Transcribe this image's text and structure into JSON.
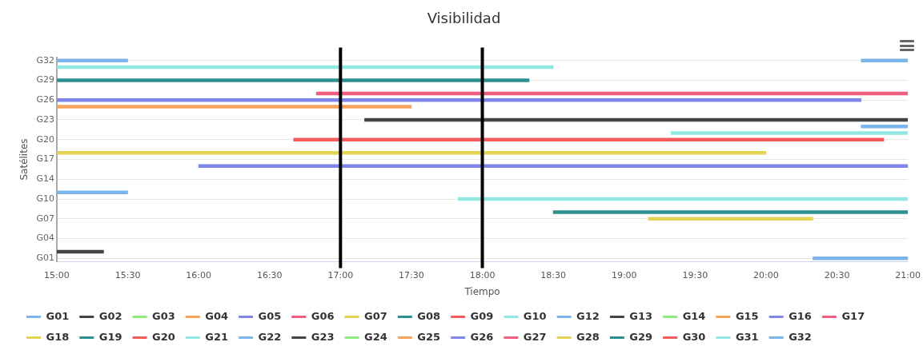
{
  "chart_data": {
    "type": "bar",
    "orientation": "horizontal",
    "title": "Visibilidad",
    "xlabel": "Tiempo",
    "ylabel": "Satélites",
    "categories": [
      "G32",
      null,
      null,
      "G29",
      null,
      null,
      "G26",
      null,
      null,
      "G23",
      null,
      null,
      "G20",
      null,
      null,
      "G17",
      null,
      null,
      "G14",
      null,
      null,
      "G10",
      null,
      null,
      "G07",
      null,
      null,
      "G04",
      null,
      null,
      "G01"
    ],
    "xlim": [
      15,
      21
    ],
    "xticks": [
      {
        "value": 15,
        "label": "15:00"
      },
      {
        "value": 15.5,
        "label": "15:30"
      },
      {
        "value": 16,
        "label": "16:00"
      },
      {
        "value": 16.5,
        "label": "16:30"
      },
      {
        "value": 17,
        "label": "17:00"
      },
      {
        "value": 17.5,
        "label": "17:30"
      },
      {
        "value": 18,
        "label": "18:00"
      },
      {
        "value": 18.5,
        "label": "18:30"
      },
      {
        "value": 19,
        "label": "19:00"
      },
      {
        "value": 19.5,
        "label": "19:30"
      },
      {
        "value": 20,
        "label": "20:00"
      },
      {
        "value": 20.5,
        "label": "20:30"
      },
      {
        "value": 21,
        "label": "21:00"
      }
    ],
    "grid": "y",
    "legend": "bottom",
    "ref_lines": [
      {
        "axis": "x",
        "value": 17,
        "color": "#000000"
      },
      {
        "axis": "x",
        "value": 18,
        "color": "#000000"
      }
    ],
    "series": [
      {
        "name": "G01",
        "color": "#7cb5ec",
        "base": [
          null,
          null,
          null,
          null,
          null,
          null,
          null,
          null,
          null,
          null,
          null,
          null,
          null,
          null,
          null,
          null,
          null,
          null,
          null,
          null,
          null,
          null,
          null,
          null,
          null,
          null,
          null,
          null,
          null,
          null,
          20.33
        ],
        "values": [
          null,
          null,
          null,
          null,
          null,
          null,
          null,
          null,
          null,
          null,
          null,
          null,
          null,
          null,
          null,
          null,
          null,
          null,
          null,
          null,
          null,
          null,
          null,
          null,
          null,
          null,
          null,
          null,
          null,
          null,
          0.67
        ]
      },
      {
        "name": "G02",
        "color": "#434348",
        "base": [
          null,
          null,
          null,
          null,
          null,
          null,
          null,
          null,
          null,
          null,
          null,
          null,
          null,
          null,
          null,
          null,
          null,
          null,
          null,
          null,
          null,
          null,
          null,
          null,
          null,
          null,
          null,
          null,
          null,
          15,
          null
        ],
        "values": [
          null,
          null,
          null,
          null,
          null,
          null,
          null,
          null,
          null,
          null,
          null,
          null,
          null,
          null,
          null,
          null,
          null,
          null,
          null,
          null,
          null,
          null,
          null,
          null,
          null,
          null,
          null,
          null,
          null,
          0.33,
          null
        ]
      },
      {
        "name": "G03",
        "color": "#90ed7d",
        "values": [
          null,
          null,
          null,
          null,
          null,
          null,
          null,
          null,
          null,
          null,
          null,
          null,
          null,
          null,
          null,
          null,
          null,
          null,
          null,
          null,
          null,
          null,
          null,
          null,
          null,
          null,
          null,
          null,
          null,
          null,
          null
        ]
      },
      {
        "name": "G04",
        "color": "#f7a35c",
        "values": [
          null,
          null,
          null,
          null,
          null,
          null,
          null,
          null,
          null,
          null,
          null,
          null,
          null,
          null,
          null,
          null,
          null,
          null,
          null,
          null,
          null,
          null,
          null,
          null,
          null,
          null,
          null,
          null,
          null,
          null,
          null
        ]
      },
      {
        "name": "G05",
        "color": "#8085e9",
        "values": [
          null,
          null,
          null,
          null,
          null,
          null,
          null,
          null,
          null,
          null,
          null,
          null,
          null,
          null,
          null,
          null,
          null,
          null,
          null,
          null,
          null,
          null,
          null,
          null,
          null,
          null,
          null,
          null,
          null,
          null,
          null
        ]
      },
      {
        "name": "G06",
        "color": "#f15c80",
        "values": [
          null,
          null,
          null,
          null,
          null,
          null,
          null,
          null,
          null,
          null,
          null,
          null,
          null,
          null,
          null,
          null,
          null,
          null,
          null,
          null,
          null,
          null,
          null,
          null,
          null,
          null,
          null,
          null,
          null,
          null,
          null
        ]
      },
      {
        "name": "G07",
        "color": "#e4d354",
        "base": [
          null,
          null,
          null,
          null,
          null,
          null,
          null,
          null,
          null,
          null,
          null,
          null,
          null,
          null,
          null,
          null,
          null,
          null,
          null,
          null,
          null,
          null,
          null,
          null,
          19.17,
          null,
          null,
          null,
          null,
          null,
          null
        ],
        "values": [
          null,
          null,
          null,
          null,
          null,
          null,
          null,
          null,
          null,
          null,
          null,
          null,
          null,
          null,
          null,
          null,
          null,
          null,
          null,
          null,
          null,
          null,
          null,
          null,
          1.16,
          null,
          null,
          null,
          null,
          null,
          null
        ]
      },
      {
        "name": "G08",
        "color": "#2b908f",
        "base": [
          null,
          null,
          null,
          null,
          null,
          null,
          null,
          null,
          null,
          null,
          null,
          null,
          null,
          null,
          null,
          null,
          null,
          null,
          null,
          null,
          null,
          null,
          null,
          18.5,
          null,
          null,
          null,
          null,
          null,
          null,
          null
        ],
        "values": [
          null,
          null,
          null,
          null,
          null,
          null,
          null,
          null,
          null,
          null,
          null,
          null,
          null,
          null,
          null,
          null,
          null,
          null,
          null,
          null,
          null,
          null,
          null,
          2.5,
          null,
          null,
          null,
          null,
          null,
          null,
          null
        ]
      },
      {
        "name": "G09",
        "color": "#f45b5b",
        "values": [
          null,
          null,
          null,
          null,
          null,
          null,
          null,
          null,
          null,
          null,
          null,
          null,
          null,
          null,
          null,
          null,
          null,
          null,
          null,
          null,
          null,
          null,
          null,
          null,
          null,
          null,
          null,
          null,
          null,
          null,
          null
        ]
      },
      {
        "name": "G10",
        "color": "#91e8e1",
        "base": [
          null,
          null,
          null,
          null,
          null,
          null,
          null,
          null,
          null,
          null,
          null,
          null,
          null,
          null,
          null,
          null,
          null,
          null,
          null,
          null,
          null,
          17.83,
          null,
          null,
          null,
          null,
          null,
          null,
          null,
          null,
          null
        ],
        "values": [
          null,
          null,
          null,
          null,
          null,
          null,
          null,
          null,
          null,
          null,
          null,
          null,
          null,
          null,
          null,
          null,
          null,
          null,
          null,
          null,
          null,
          3.17,
          null,
          null,
          null,
          null,
          null,
          null,
          null,
          null,
          null
        ]
      },
      {
        "name": "G12",
        "color": "#7cb5ec",
        "base": [
          null,
          null,
          null,
          null,
          null,
          null,
          null,
          null,
          null,
          null,
          null,
          null,
          null,
          null,
          null,
          null,
          null,
          null,
          null,
          null,
          15,
          null,
          null,
          null,
          null,
          null,
          null,
          null,
          null,
          null,
          null
        ],
        "values": [
          null,
          null,
          null,
          null,
          null,
          null,
          null,
          null,
          null,
          null,
          null,
          null,
          null,
          null,
          null,
          null,
          null,
          null,
          null,
          null,
          0.5,
          null,
          null,
          null,
          null,
          null,
          null,
          null,
          null,
          null,
          null
        ]
      },
      {
        "name": "G13",
        "color": "#434348",
        "values": [
          null,
          null,
          null,
          null,
          null,
          null,
          null,
          null,
          null,
          null,
          null,
          null,
          null,
          null,
          null,
          null,
          null,
          null,
          null,
          null,
          null,
          null,
          null,
          null,
          null,
          null,
          null,
          null,
          null,
          null,
          null
        ]
      },
      {
        "name": "G14",
        "color": "#90ed7d",
        "values": [
          null,
          null,
          null,
          null,
          null,
          null,
          null,
          null,
          null,
          null,
          null,
          null,
          null,
          null,
          null,
          null,
          null,
          null,
          null,
          null,
          null,
          null,
          null,
          null,
          null,
          null,
          null,
          null,
          null,
          null,
          null
        ]
      },
      {
        "name": "G15",
        "color": "#f7a35c",
        "values": [
          null,
          null,
          null,
          null,
          null,
          null,
          null,
          null,
          null,
          null,
          null,
          null,
          null,
          null,
          null,
          null,
          null,
          null,
          null,
          null,
          null,
          null,
          null,
          null,
          null,
          null,
          null,
          null,
          null,
          null,
          null
        ]
      },
      {
        "name": "G16",
        "color": "#8085e9",
        "base": [
          null,
          null,
          null,
          null,
          null,
          null,
          null,
          null,
          null,
          null,
          null,
          null,
          null,
          null,
          null,
          null,
          16,
          null,
          null,
          null,
          null,
          null,
          null,
          null,
          null,
          null,
          null,
          null,
          null,
          null,
          null
        ],
        "values": [
          null,
          null,
          null,
          null,
          null,
          null,
          null,
          null,
          null,
          null,
          null,
          null,
          null,
          null,
          null,
          null,
          5,
          null,
          null,
          null,
          null,
          null,
          null,
          null,
          null,
          null,
          null,
          null,
          null,
          null,
          null
        ]
      },
      {
        "name": "G17",
        "color": "#f15c80",
        "values": [
          null,
          null,
          null,
          null,
          null,
          null,
          null,
          null,
          null,
          null,
          null,
          null,
          null,
          null,
          null,
          null,
          null,
          null,
          null,
          null,
          null,
          null,
          null,
          null,
          null,
          null,
          null,
          null,
          null,
          null,
          null
        ]
      },
      {
        "name": "G18",
        "color": "#e4d354",
        "base": [
          null,
          null,
          null,
          null,
          null,
          null,
          null,
          null,
          null,
          null,
          null,
          null,
          null,
          null,
          15,
          null,
          null,
          null,
          null,
          null,
          null,
          null,
          null,
          null,
          null,
          null,
          null,
          null,
          null,
          null,
          null
        ],
        "values": [
          null,
          null,
          null,
          null,
          null,
          null,
          null,
          null,
          null,
          null,
          null,
          null,
          null,
          null,
          5,
          null,
          null,
          null,
          null,
          null,
          null,
          null,
          null,
          null,
          null,
          null,
          null,
          null,
          null,
          null,
          null
        ]
      },
      {
        "name": "G19",
        "color": "#2b908f",
        "values": [
          null,
          null,
          null,
          null,
          null,
          null,
          null,
          null,
          null,
          null,
          null,
          null,
          null,
          null,
          null,
          null,
          null,
          null,
          null,
          null,
          null,
          null,
          null,
          null,
          null,
          null,
          null,
          null,
          null,
          null,
          null
        ]
      },
      {
        "name": "G20",
        "color": "#f45b5b",
        "base": [
          null,
          null,
          null,
          null,
          null,
          null,
          null,
          null,
          null,
          null,
          null,
          null,
          16.67,
          null,
          null,
          null,
          null,
          null,
          null,
          null,
          null,
          null,
          null,
          null,
          null,
          null,
          null,
          null,
          null,
          null,
          null
        ],
        "values": [
          null,
          null,
          null,
          null,
          null,
          null,
          null,
          null,
          null,
          null,
          null,
          null,
          4.16,
          null,
          null,
          null,
          null,
          null,
          null,
          null,
          null,
          null,
          null,
          null,
          null,
          null,
          null,
          null,
          null,
          null,
          null
        ]
      },
      {
        "name": "G21",
        "color": "#91e8e1",
        "base": [
          null,
          null,
          null,
          null,
          null,
          null,
          null,
          null,
          null,
          null,
          null,
          19.33,
          null,
          null,
          null,
          null,
          null,
          null,
          null,
          null,
          null,
          null,
          null,
          null,
          null,
          null,
          null,
          null,
          null,
          null,
          null
        ],
        "values": [
          null,
          null,
          null,
          null,
          null,
          null,
          null,
          null,
          null,
          null,
          null,
          1.67,
          null,
          null,
          null,
          null,
          null,
          null,
          null,
          null,
          null,
          null,
          null,
          null,
          null,
          null,
          null,
          null,
          null,
          null,
          null
        ]
      },
      {
        "name": "G22",
        "color": "#7cb5ec",
        "base": [
          null,
          null,
          null,
          null,
          null,
          null,
          null,
          null,
          null,
          null,
          20.67,
          null,
          null,
          null,
          null,
          null,
          null,
          null,
          null,
          null,
          null,
          null,
          null,
          null,
          null,
          null,
          null,
          null,
          null,
          null,
          null
        ],
        "values": [
          null,
          null,
          null,
          null,
          null,
          null,
          null,
          null,
          null,
          null,
          0.33,
          null,
          null,
          null,
          null,
          null,
          null,
          null,
          null,
          null,
          null,
          null,
          null,
          null,
          null,
          null,
          null,
          null,
          null,
          null,
          null
        ]
      },
      {
        "name": "G23",
        "color": "#434348",
        "base": [
          null,
          null,
          null,
          null,
          null,
          null,
          null,
          null,
          null,
          17.17,
          null,
          null,
          null,
          null,
          null,
          null,
          null,
          null,
          null,
          null,
          null,
          null,
          null,
          null,
          null,
          null,
          null,
          null,
          null,
          null,
          null
        ],
        "values": [
          null,
          null,
          null,
          null,
          null,
          null,
          null,
          null,
          null,
          3.83,
          null,
          null,
          null,
          null,
          null,
          null,
          null,
          null,
          null,
          null,
          null,
          null,
          null,
          null,
          null,
          null,
          null,
          null,
          null,
          null,
          null
        ]
      },
      {
        "name": "G24",
        "color": "#90ed7d",
        "values": [
          null,
          null,
          null,
          null,
          null,
          null,
          null,
          null,
          null,
          null,
          null,
          null,
          null,
          null,
          null,
          null,
          null,
          null,
          null,
          null,
          null,
          null,
          null,
          null,
          null,
          null,
          null,
          null,
          null,
          null,
          null
        ]
      },
      {
        "name": "G25",
        "color": "#f7a35c",
        "base": [
          null,
          null,
          null,
          null,
          null,
          null,
          null,
          15,
          null,
          null,
          null,
          null,
          null,
          null,
          null,
          null,
          null,
          null,
          null,
          null,
          null,
          null,
          null,
          null,
          null,
          null,
          null,
          null,
          null,
          null,
          null
        ],
        "values": [
          null,
          null,
          null,
          null,
          null,
          null,
          null,
          2.5,
          null,
          null,
          null,
          null,
          null,
          null,
          null,
          null,
          null,
          null,
          null,
          null,
          null,
          null,
          null,
          null,
          null,
          null,
          null,
          null,
          null,
          null,
          null
        ]
      },
      {
        "name": "G26",
        "color": "#8085e9",
        "base": [
          null,
          null,
          null,
          null,
          null,
          null,
          15,
          null,
          null,
          null,
          null,
          null,
          null,
          null,
          null,
          null,
          null,
          null,
          null,
          null,
          null,
          null,
          null,
          null,
          null,
          null,
          null,
          null,
          null,
          null,
          null
        ],
        "values": [
          null,
          null,
          null,
          null,
          null,
          null,
          5.67,
          null,
          null,
          null,
          null,
          null,
          null,
          null,
          null,
          null,
          null,
          null,
          null,
          null,
          null,
          null,
          null,
          null,
          null,
          null,
          null,
          null,
          null,
          null,
          null
        ]
      },
      {
        "name": "G27",
        "color": "#f15c80",
        "base": [
          null,
          null,
          null,
          null,
          null,
          16.83,
          null,
          null,
          null,
          null,
          null,
          null,
          null,
          null,
          null,
          null,
          null,
          null,
          null,
          null,
          null,
          null,
          null,
          null,
          null,
          null,
          null,
          null,
          null,
          null,
          null
        ],
        "values": [
          null,
          null,
          null,
          null,
          null,
          4.17,
          null,
          null,
          null,
          null,
          null,
          null,
          null,
          null,
          null,
          null,
          null,
          null,
          null,
          null,
          null,
          null,
          null,
          null,
          null,
          null,
          null,
          null,
          null,
          null,
          null
        ]
      },
      {
        "name": "G28",
        "color": "#e4d354",
        "values": [
          null,
          null,
          null,
          null,
          null,
          null,
          null,
          null,
          null,
          null,
          null,
          null,
          null,
          null,
          null,
          null,
          null,
          null,
          null,
          null,
          null,
          null,
          null,
          null,
          null,
          null,
          null,
          null,
          null,
          null,
          null
        ]
      },
      {
        "name": "G29",
        "color": "#2b908f",
        "base": [
          null,
          null,
          null,
          15,
          null,
          null,
          null,
          null,
          null,
          null,
          null,
          null,
          null,
          null,
          null,
          null,
          null,
          null,
          null,
          null,
          null,
          null,
          null,
          null,
          null,
          null,
          null,
          null,
          null,
          null,
          null
        ],
        "values": [
          null,
          null,
          null,
          3.33,
          null,
          null,
          null,
          null,
          null,
          null,
          null,
          null,
          null,
          null,
          null,
          null,
          null,
          null,
          null,
          null,
          null,
          null,
          null,
          null,
          null,
          null,
          null,
          null,
          null,
          null,
          null
        ]
      },
      {
        "name": "G30",
        "color": "#f45b5b",
        "values": [
          null,
          null,
          null,
          null,
          null,
          null,
          null,
          null,
          null,
          null,
          null,
          null,
          null,
          null,
          null,
          null,
          null,
          null,
          null,
          null,
          null,
          null,
          null,
          null,
          null,
          null,
          null,
          null,
          null,
          null,
          null
        ]
      },
      {
        "name": "G31",
        "color": "#91e8e1",
        "base": [
          null,
          15,
          null,
          null,
          null,
          null,
          null,
          null,
          null,
          null,
          null,
          null,
          null,
          null,
          null,
          null,
          null,
          null,
          null,
          null,
          null,
          null,
          null,
          null,
          null,
          null,
          null,
          null,
          null,
          null,
          null
        ],
        "values": [
          null,
          3.5,
          null,
          null,
          null,
          null,
          null,
          null,
          null,
          null,
          null,
          null,
          null,
          null,
          null,
          null,
          null,
          null,
          null,
          null,
          null,
          null,
          null,
          null,
          null,
          null,
          null,
          null,
          null,
          null,
          null
        ]
      },
      {
        "name": "G32",
        "color": "#7cb5ec",
        "base": [
          15,
          null,
          null,
          null,
          null,
          null,
          null,
          null,
          null,
          null,
          null,
          null,
          null,
          null,
          null,
          null,
          null,
          null,
          null,
          null,
          null,
          null,
          null,
          null,
          null,
          null,
          null,
          null,
          null,
          null,
          null
        ],
        "values": [
          0.5,
          null,
          null,
          null,
          null,
          null,
          null,
          null,
          null,
          null,
          null,
          null,
          null,
          null,
          null,
          null,
          null,
          null,
          null,
          null,
          null,
          null,
          null,
          null,
          null,
          null,
          null,
          null,
          null,
          null,
          null
        ]
      },
      {
        "color": "#7cb5ec",
        "base": [
          20.67,
          null,
          null,
          null,
          null,
          null,
          null,
          null,
          null,
          null,
          null,
          null,
          null,
          null,
          null,
          null,
          null,
          null,
          null,
          null,
          null,
          null,
          null,
          null,
          null,
          null,
          null,
          null,
          null,
          null,
          null
        ],
        "values": [
          0.33,
          null,
          null,
          null,
          null,
          null,
          null,
          null,
          null,
          null,
          null,
          null,
          null,
          null,
          null,
          null,
          null,
          null,
          null,
          null,
          null,
          null,
          null,
          null,
          null,
          null,
          null,
          null,
          null,
          null,
          null
        ]
      }
    ]
  }
}
